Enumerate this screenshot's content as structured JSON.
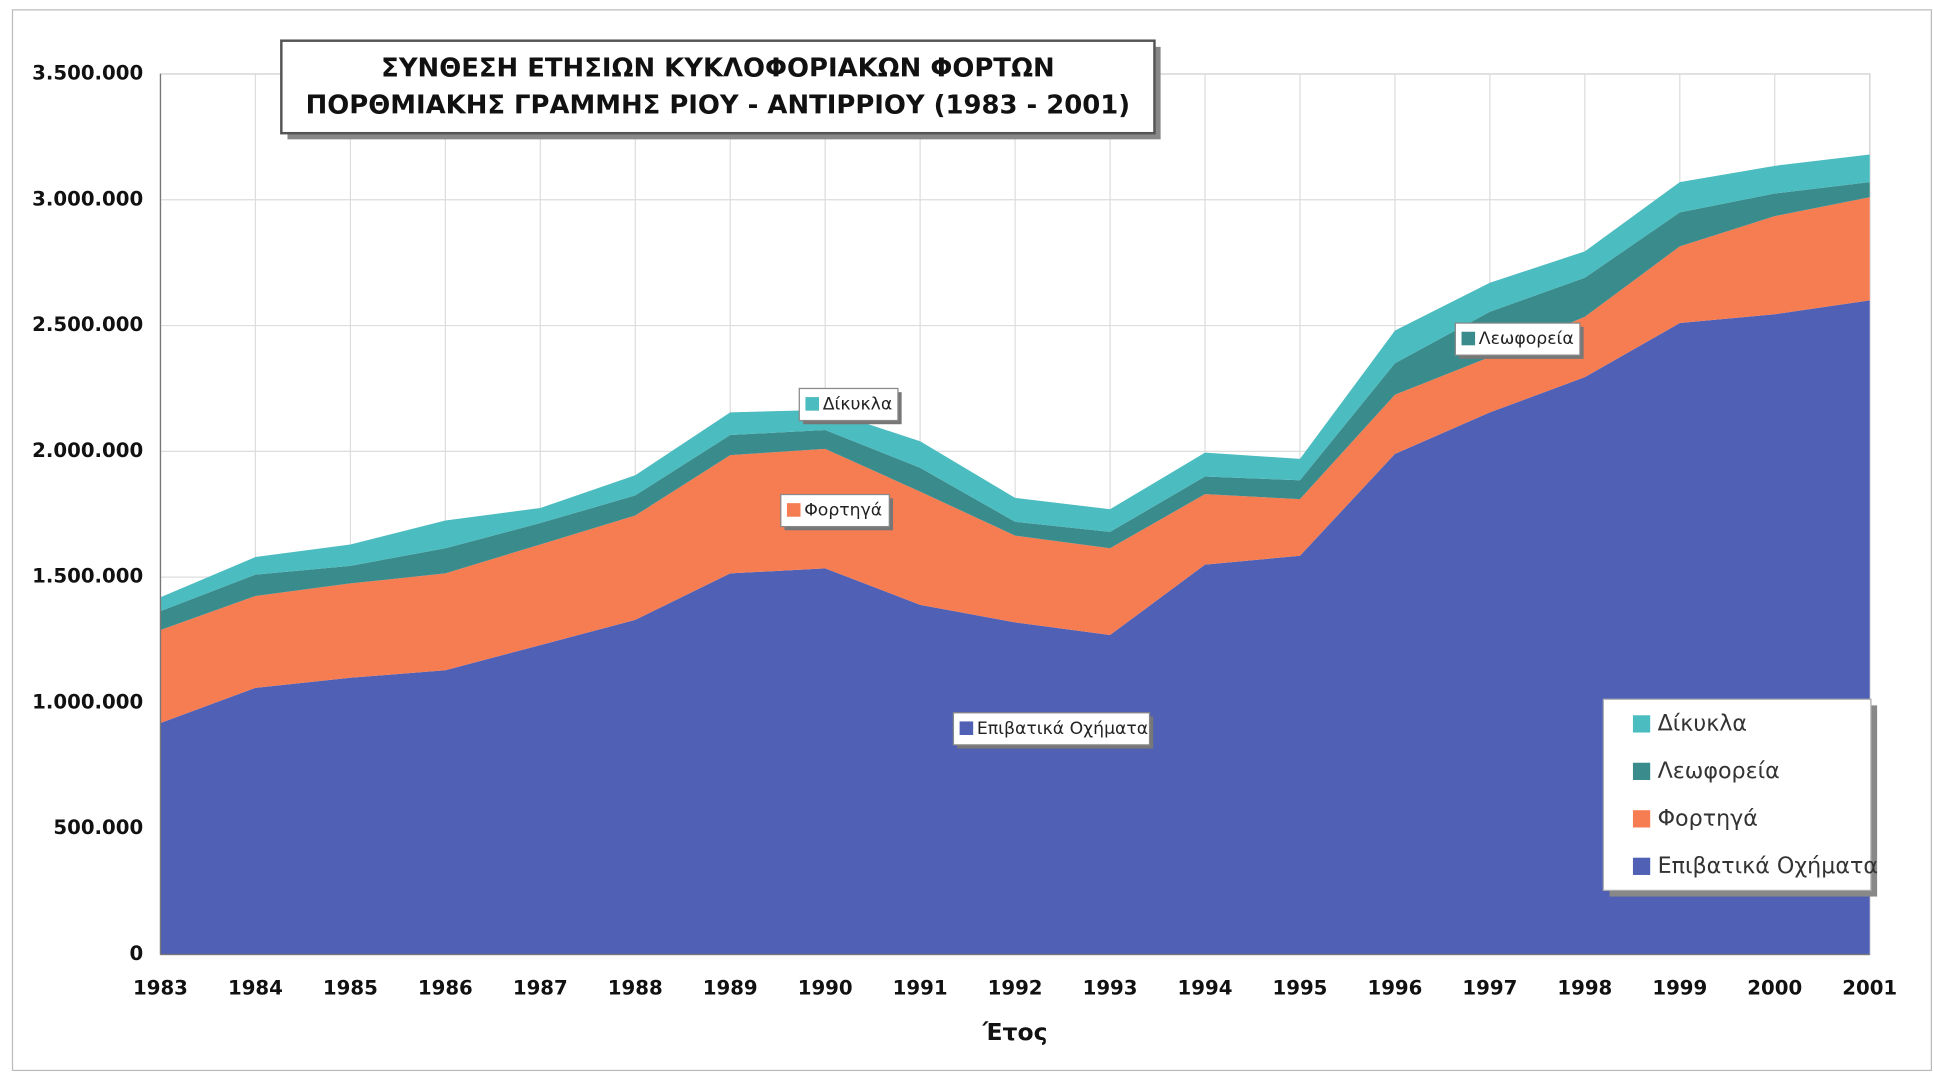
{
  "chart_data": {
    "type": "stacked_area",
    "title": [
      "ΣΥΝΘΕΣΗ ΕΤΗΣΙΩΝ ΚΥΚΛΟΦΟΡΙΑΚΩΝ ΦΟΡΤΩΝ",
      "ΠΟΡΘΜΙΑΚΗΣ ΓΡΑΜΜΗΣ ΡΙΟΥ - ΑΝΤΙΡΡΙΟΥ (1983 - 2001)"
    ],
    "x_label": "Έτος",
    "categories": [
      "1983",
      "1984",
      "1985",
      "1986",
      "1987",
      "1988",
      "1989",
      "1990",
      "1991",
      "1992",
      "1993",
      "1994",
      "1995",
      "1996",
      "1997",
      "1998",
      "1999",
      "2000",
      "2001"
    ],
    "series": [
      {
        "name": "Επιβατικά Οχήματα",
        "color": "#5061b5",
        "values": [
          920000,
          1060000,
          1100000,
          1130000,
          1230000,
          1330000,
          1515000,
          1535000,
          1390000,
          1320000,
          1270000,
          1550000,
          1585000,
          1990000,
          2155000,
          2295000,
          2510000,
          2545000,
          2600000
        ]
      },
      {
        "name": "Φορτηγά",
        "color": "#f67c52",
        "values": [
          370000,
          365000,
          375000,
          385000,
          400000,
          415000,
          470000,
          475000,
          450000,
          345000,
          345000,
          280000,
          225000,
          235000,
          220000,
          240000,
          305000,
          390000,
          410000
        ]
      },
      {
        "name": "Λεωφορεία",
        "color": "#3a8c8c",
        "values": [
          75000,
          85000,
          70000,
          100000,
          85000,
          80000,
          80000,
          75000,
          95000,
          55000,
          65000,
          70000,
          75000,
          125000,
          180000,
          155000,
          135000,
          90000,
          60000
        ]
      },
      {
        "name": "Δίκυκλα",
        "color": "#4bbcc0",
        "values": [
          55000,
          70000,
          85000,
          110000,
          60000,
          80000,
          90000,
          80000,
          105000,
          95000,
          90000,
          95000,
          85000,
          130000,
          115000,
          105000,
          120000,
          110000,
          110000
        ]
      }
    ],
    "ylim": [
      0,
      3500000
    ],
    "yticks": [
      0,
      {
        "value": 500000,
        "label": "500.000"
      },
      {
        "value": 1000000,
        "label": "1.000.000"
      },
      {
        "value": 1500000,
        "label": "1.500.000"
      },
      {
        "value": 2000000,
        "label": "2.000.000"
      },
      {
        "value": 2500000,
        "label": "2.500.000"
      },
      {
        "value": 3000000,
        "label": "3.000.000"
      },
      {
        "value": 3500000,
        "label": "3.500.000"
      }
    ],
    "grid": true,
    "legend": "lower right"
  }
}
